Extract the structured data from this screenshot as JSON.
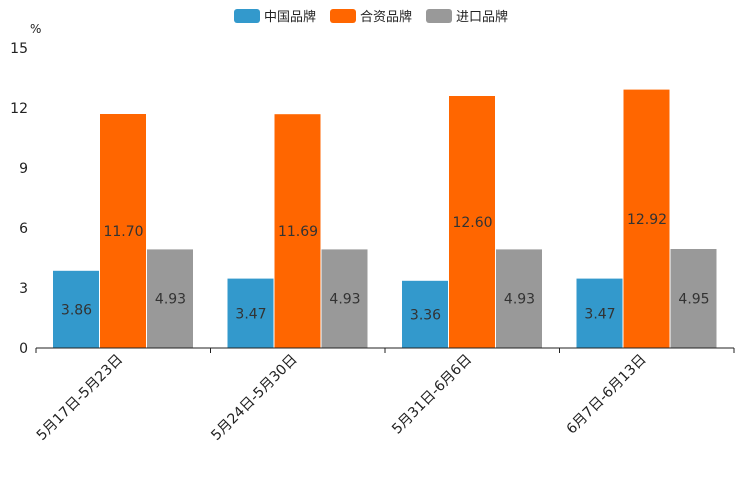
{
  "chart_data": {
    "type": "bar",
    "title": "",
    "xlabel": "",
    "ylabel": "%",
    "ylim": [
      0,
      15
    ],
    "yticks": [
      0,
      3,
      6,
      9,
      12,
      15
    ],
    "grid": false,
    "legend_position": "top-center",
    "categories": [
      "5月17日-5月23日",
      "5月24日-5月30日",
      "5月31日-6月6日",
      "6月7日-6月13日"
    ],
    "series": [
      {
        "name": "中国品牌",
        "color": "#3399cc",
        "values": [
          3.86,
          3.47,
          3.36,
          3.47
        ],
        "labels": [
          "3.86",
          "3.47",
          "3.36",
          "3.47"
        ]
      },
      {
        "name": "合资品牌",
        "color": "#ff6600",
        "values": [
          11.7,
          11.69,
          12.6,
          12.92
        ],
        "labels": [
          "11.70",
          "11.69",
          "12.60",
          "12.92"
        ]
      },
      {
        "name": "进口品牌",
        "color": "#999999",
        "values": [
          4.93,
          4.93,
          4.93,
          4.95
        ],
        "labels": [
          "4.93",
          "4.93",
          "4.93",
          "4.95"
        ]
      }
    ]
  }
}
